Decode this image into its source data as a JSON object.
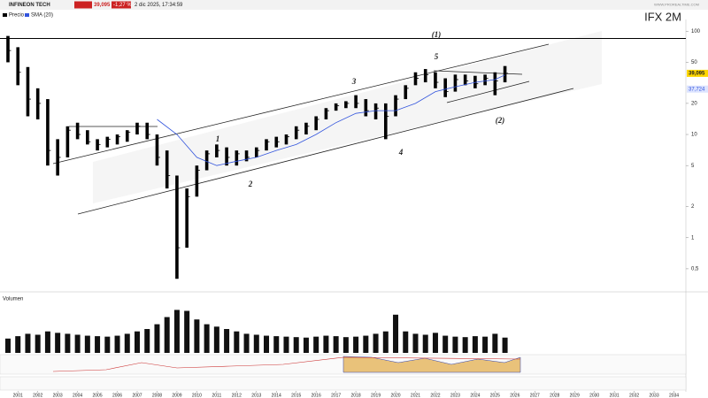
{
  "header": {
    "name": "INFINEON TECH",
    "price": "39,095",
    "change": "-1,27 %",
    "date": "2 dic 2025, 17:34:59",
    "site": "WWW.PROREALTIME.COM"
  },
  "chart_data": {
    "type": "ohlc",
    "title": "IFX  2M",
    "log_scale": true,
    "grid": false,
    "xlim": [
      2000.1,
      2034.6
    ],
    "xticks": [
      2001,
      2002,
      2003,
      2004,
      2005,
      2006,
      2007,
      2008,
      2009,
      2010,
      2011,
      2012,
      2013,
      2014,
      2015,
      2016,
      2017,
      2018,
      2019,
      2020,
      2021,
      2022,
      2023,
      2024,
      2025,
      2026,
      2027,
      2028,
      2029,
      2030,
      2031,
      2032,
      2033,
      2034
    ],
    "ylim": [
      0.35,
      130
    ],
    "yticks": [
      100,
      50,
      20,
      10,
      5,
      2,
      1,
      {
        "value": 0.5,
        "label": "0,5"
      }
    ],
    "hlines": [
      85
    ],
    "series": [
      {
        "name": "Precio",
        "color": "#000000",
        "x": [
          2000.5,
          2001,
          2001.5,
          2002,
          2002.5,
          2003,
          2003.5,
          2004,
          2004.5,
          2005,
          2005.5,
          2006,
          2006.5,
          2007,
          2007.5,
          2008,
          2008.5,
          2009,
          2009.5,
          2010,
          2010.5,
          2011,
          2011.5,
          2012,
          2012.5,
          2013,
          2013.5,
          2014,
          2014.5,
          2015,
          2015.5,
          2016,
          2016.5,
          2017,
          2017.5,
          2018,
          2018.5,
          2019,
          2019.5,
          2020,
          2020.5,
          2021,
          2021.5,
          2022,
          2022.5,
          2023,
          2023.5,
          2024,
          2024.5,
          2025,
          2025.5
        ],
        "high": [
          90,
          70,
          45,
          28,
          22,
          9,
          12,
          13,
          11,
          9,
          9.5,
          10,
          11,
          13,
          13,
          10,
          7,
          4,
          3,
          5,
          7,
          8,
          7.5,
          7,
          7,
          7.5,
          9,
          9.5,
          10,
          12,
          13,
          15,
          18,
          20,
          21,
          24,
          22,
          20,
          20,
          24,
          30,
          40,
          43,
          40,
          35,
          38,
          38,
          37,
          38,
          40,
          46
        ],
        "low": [
          50,
          30,
          15,
          14,
          5,
          4,
          6,
          9,
          8,
          7,
          7.5,
          8,
          8.5,
          10,
          9,
          5,
          3,
          0.4,
          0.8,
          2.5,
          4.5,
          6,
          5,
          5,
          5.5,
          6,
          7,
          7.5,
          8,
          9,
          10,
          11,
          14,
          17,
          18,
          18,
          15,
          14,
          9,
          15,
          22,
          30,
          32,
          28,
          23,
          26,
          30,
          28,
          30,
          24,
          32
        ],
        "close": [
          65,
          40,
          22,
          20,
          7,
          6,
          11,
          10,
          8.5,
          8,
          9,
          9.5,
          10.5,
          12,
          10,
          6,
          4,
          0.8,
          2.5,
          4.5,
          6.5,
          7,
          6,
          6.5,
          6,
          7,
          8.5,
          8.5,
          9.5,
          11,
          12,
          14,
          17,
          19,
          20,
          20,
          17,
          18,
          15,
          22,
          28,
          35,
          38,
          32,
          26,
          34,
          33,
          31,
          35,
          33,
          39.095
        ],
        "value_labels": [
          null,
          null,
          null,
          null,
          null,
          null,
          null,
          null,
          null,
          null,
          null,
          null,
          null,
          null,
          null,
          null,
          null,
          null,
          null,
          null,
          null,
          null,
          null,
          null,
          null,
          null,
          null,
          null,
          null,
          null,
          null,
          null,
          null,
          null,
          null,
          null,
          null,
          null,
          null,
          null,
          null,
          null,
          null,
          null,
          null,
          null,
          null,
          null,
          null,
          null,
          "39,095"
        ]
      },
      {
        "name": "SMA (20)",
        "color": "#3355dd",
        "x": [
          2008,
          2009,
          2010,
          2011,
          2012,
          2013,
          2014,
          2015,
          2016,
          2017,
          2018,
          2019,
          2020,
          2021,
          2022,
          2023,
          2024,
          2025,
          2025.5
        ],
        "values": [
          14,
          10,
          6,
          5,
          5.5,
          6,
          7,
          8,
          10,
          13,
          16,
          17,
          17,
          20,
          26,
          29,
          32,
          34,
          37.724
        ],
        "value_labels": [
          null,
          null,
          null,
          null,
          null,
          null,
          null,
          null,
          null,
          null,
          null,
          null,
          null,
          null,
          null,
          null,
          null,
          null,
          "37,724"
        ]
      }
    ],
    "annotations": [
      "(1)",
      "(2)",
      "1",
      "2",
      "3",
      "4",
      "5"
    ],
    "volume": {
      "name": "Volumen",
      "color": "#111111",
      "ylim": [
        0,
        100
      ],
      "values": [
        30,
        35,
        40,
        38,
        45,
        42,
        40,
        38,
        36,
        35,
        34,
        36,
        40,
        45,
        50,
        60,
        75,
        90,
        88,
        70,
        60,
        55,
        50,
        45,
        40,
        38,
        36,
        35,
        34,
        33,
        32,
        34,
        36,
        35,
        33,
        34,
        36,
        40,
        45,
        80,
        45,
        40,
        38,
        42,
        36,
        34,
        33,
        35,
        34,
        40,
        32
      ]
    }
  }
}
